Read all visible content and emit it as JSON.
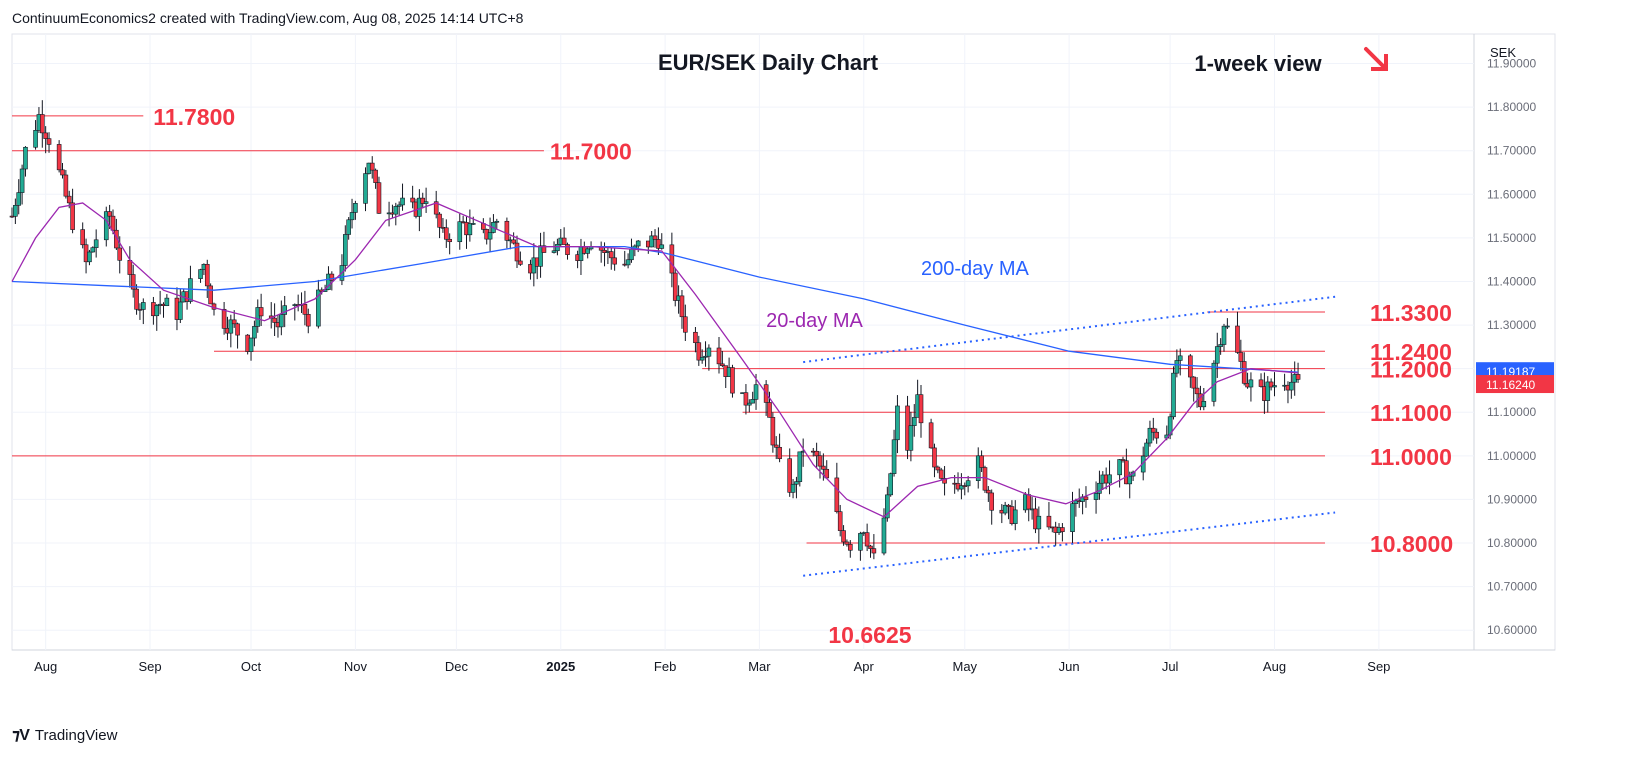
{
  "header": {
    "credit": "ContinuumEconomics2 created with TradingView.com, Aug 08, 2025 14:14 UTC+8"
  },
  "footer": {
    "brand": "TradingView"
  },
  "colors": {
    "bull": "#22ab94",
    "bear": "#f23645",
    "ma20": "#9c27b0",
    "ma200": "#2962ff",
    "level": "#f23645",
    "channel": "#2962ff",
    "price_tag": "#f23645",
    "ma200_tag": "#2962ff",
    "grid": "#f0f3fa",
    "text": "#131722",
    "axis_text": "#6a6d78"
  },
  "chart_data": {
    "type": "candlestick",
    "title": "EUR/SEK Daily Chart",
    "view_note": "1-week view",
    "view_direction": "down",
    "currency_label": "SEK",
    "ylim": [
      10.55,
      11.97
    ],
    "y_ticks": [
      "11.90000",
      "11.80000",
      "11.70000",
      "11.60000",
      "11.50000",
      "11.40000",
      "11.30000",
      "11.20000",
      "11.10000",
      "11.00000",
      "10.90000",
      "10.80000",
      "10.70000",
      "10.60000"
    ],
    "x_ticks": [
      "Aug",
      "Sep",
      "Oct",
      "Nov",
      "Dec",
      "2025",
      "Feb",
      "Mar",
      "Apr",
      "May",
      "Jun",
      "Jul",
      "Aug",
      "Sep"
    ],
    "x_tick_dates": [
      "2024-08-01",
      "2024-09-01",
      "2024-10-01",
      "2024-11-01",
      "2024-12-01",
      "2025-01-01",
      "2025-02-01",
      "2025-03-01",
      "2025-04-01",
      "2025-05-01",
      "2025-06-01",
      "2025-07-01",
      "2025-08-01",
      "2025-09-01"
    ],
    "last_price": "11.16240",
    "ma200_last": "11.19187",
    "levels": [
      {
        "label": "11.7800",
        "value": 11.78,
        "from": "2024-07-22",
        "to": "2024-08-30"
      },
      {
        "label": "11.7000",
        "value": 11.7,
        "from": "2024-07-22",
        "to": "2024-12-27"
      },
      {
        "label": "11.3300",
        "value": 11.33,
        "from": "2025-07-12",
        "to": "2025-08-16"
      },
      {
        "label": "11.2400",
        "value": 11.24,
        "from": "2024-09-20",
        "to": "2025-08-16"
      },
      {
        "label": "11.2000",
        "value": 11.2,
        "from": "2025-02-12",
        "to": "2025-08-16"
      },
      {
        "label": "11.1000",
        "value": 11.1,
        "from": "2025-02-24",
        "to": "2025-08-16"
      },
      {
        "label": "11.0000",
        "value": 11.0,
        "from": "2024-07-22",
        "to": "2025-08-16"
      },
      {
        "label": "10.8000",
        "value": 10.8,
        "from": "2025-03-15",
        "to": "2025-08-16"
      }
    ],
    "low_label": {
      "label": "10.6625",
      "value": 10.6625,
      "date": "2025-04-07"
    },
    "channel_upper": [
      [
        "2025-03-14",
        11.215
      ],
      [
        "2025-08-19",
        11.365
      ]
    ],
    "channel_lower": [
      [
        "2025-03-14",
        10.725
      ],
      [
        "2025-08-19",
        10.87
      ]
    ],
    "ma_labels": [
      {
        "label": "200-day MA",
        "date": "2025-04-18",
        "value": 11.415
      },
      {
        "label": "20-day MA",
        "date": "2025-03-03",
        "value": 11.295
      }
    ],
    "ma200": [
      [
        "2024-07-22",
        11.4
      ],
      [
        "2024-08-20",
        11.39
      ],
      [
        "2024-09-20",
        11.38
      ],
      [
        "2024-10-20",
        11.4
      ],
      [
        "2024-11-20",
        11.44
      ],
      [
        "2024-12-20",
        11.48
      ],
      [
        "2025-01-20",
        11.48
      ],
      [
        "2025-02-01",
        11.465
      ],
      [
        "2025-03-01",
        11.41
      ],
      [
        "2025-04-01",
        11.36
      ],
      [
        "2025-05-01",
        11.3
      ],
      [
        "2025-06-01",
        11.24
      ],
      [
        "2025-07-01",
        11.21
      ],
      [
        "2025-08-08",
        11.19187
      ]
    ],
    "ma20": [
      [
        "2024-07-22",
        11.4
      ],
      [
        "2024-07-29",
        11.5
      ],
      [
        "2024-08-05",
        11.57
      ],
      [
        "2024-08-12",
        11.58
      ],
      [
        "2024-08-19",
        11.54
      ],
      [
        "2024-08-26",
        11.45
      ],
      [
        "2024-09-05",
        11.38
      ],
      [
        "2024-09-20",
        11.34
      ],
      [
        "2024-10-05",
        11.31
      ],
      [
        "2024-10-20",
        11.36
      ],
      [
        "2024-11-01",
        11.45
      ],
      [
        "2024-11-10",
        11.54
      ],
      [
        "2024-11-25",
        11.58
      ],
      [
        "2024-12-10",
        11.53
      ],
      [
        "2024-12-25",
        11.48
      ],
      [
        "2025-01-10",
        11.48
      ],
      [
        "2025-01-31",
        11.47
      ],
      [
        "2025-02-10",
        11.37
      ],
      [
        "2025-02-24",
        11.22
      ],
      [
        "2025-03-07",
        11.1
      ],
      [
        "2025-03-17",
        10.98
      ],
      [
        "2025-03-27",
        10.9
      ],
      [
        "2025-04-07",
        10.86
      ],
      [
        "2025-04-17",
        10.93
      ],
      [
        "2025-04-27",
        10.95
      ],
      [
        "2025-05-07",
        10.95
      ],
      [
        "2025-05-20",
        10.91
      ],
      [
        "2025-05-31",
        10.89
      ],
      [
        "2025-06-10",
        10.92
      ],
      [
        "2025-06-20",
        10.96
      ],
      [
        "2025-06-30",
        11.04
      ],
      [
        "2025-07-08",
        11.12
      ],
      [
        "2025-07-15",
        11.17
      ],
      [
        "2025-07-25",
        11.2
      ],
      [
        "2025-08-08",
        11.19
      ]
    ],
    "series_path": [
      [
        "2024-07-22",
        11.55
      ],
      [
        "2024-07-26",
        11.7
      ],
      [
        "2024-07-30",
        11.78
      ],
      [
        "2024-08-02",
        11.73
      ],
      [
        "2024-08-06",
        11.62
      ],
      [
        "2024-08-09",
        11.54
      ],
      [
        "2024-08-13",
        11.44
      ],
      [
        "2024-08-16",
        11.5
      ],
      [
        "2024-08-20",
        11.55
      ],
      [
        "2024-08-23",
        11.46
      ],
      [
        "2024-08-27",
        11.37
      ],
      [
        "2024-08-30",
        11.34
      ],
      [
        "2024-09-04",
        11.35
      ],
      [
        "2024-09-09",
        11.33
      ],
      [
        "2024-09-13",
        11.39
      ],
      [
        "2024-09-17",
        11.44
      ],
      [
        "2024-09-20",
        11.33
      ],
      [
        "2024-09-25",
        11.3
      ],
      [
        "2024-09-30",
        11.26
      ],
      [
        "2024-10-04",
        11.34
      ],
      [
        "2024-10-09",
        11.3
      ],
      [
        "2024-10-14",
        11.35
      ],
      [
        "2024-10-18",
        11.32
      ],
      [
        "2024-10-23",
        11.38
      ],
      [
        "2024-10-28",
        11.45
      ],
      [
        "2024-11-01",
        11.6
      ],
      [
        "2024-11-05",
        11.68
      ],
      [
        "2024-11-08",
        11.57
      ],
      [
        "2024-11-13",
        11.58
      ],
      [
        "2024-11-18",
        11.56
      ],
      [
        "2024-11-22",
        11.6
      ],
      [
        "2024-11-27",
        11.5
      ],
      [
        "2024-12-03",
        11.53
      ],
      [
        "2024-12-09",
        11.5
      ],
      [
        "2024-12-13",
        11.54
      ],
      [
        "2024-12-18",
        11.48
      ],
      [
        "2024-12-23",
        11.44
      ],
      [
        "2024-12-30",
        11.48
      ],
      [
        "2025-01-06",
        11.47
      ],
      [
        "2025-01-10",
        11.5
      ],
      [
        "2025-01-15",
        11.46
      ],
      [
        "2025-01-20",
        11.44
      ],
      [
        "2025-01-24",
        11.48
      ],
      [
        "2025-01-30",
        11.5
      ],
      [
        "2025-02-04",
        11.37
      ],
      [
        "2025-02-07",
        11.3
      ],
      [
        "2025-02-11",
        11.24
      ],
      [
        "2025-02-14",
        11.26
      ],
      [
        "2025-02-19",
        11.2
      ],
      [
        "2025-02-24",
        11.12
      ],
      [
        "2025-02-28",
        11.16
      ],
      [
        "2025-03-04",
        11.08
      ],
      [
        "2025-03-07",
        10.97
      ],
      [
        "2025-03-11",
        10.92
      ],
      [
        "2025-03-14",
        11.02
      ],
      [
        "2025-03-18",
        10.99
      ],
      [
        "2025-03-21",
        10.94
      ],
      [
        "2025-03-25",
        10.83
      ],
      [
        "2025-03-28",
        10.8
      ],
      [
        "2025-04-01",
        10.84
      ],
      [
        "2025-04-04",
        10.76
      ],
      [
        "2025-04-08",
        10.89
      ],
      [
        "2025-04-11",
        11.1
      ],
      [
        "2025-04-14",
        11.02
      ],
      [
        "2025-04-17",
        11.13
      ],
      [
        "2025-04-22",
        10.96
      ],
      [
        "2025-04-25",
        10.92
      ],
      [
        "2025-04-30",
        10.95
      ],
      [
        "2025-05-05",
        10.98
      ],
      [
        "2025-05-09",
        10.9
      ],
      [
        "2025-05-14",
        10.86
      ],
      [
        "2025-05-19",
        10.89
      ],
      [
        "2025-05-23",
        10.84
      ],
      [
        "2025-05-28",
        10.82
      ],
      [
        "2025-06-02",
        10.88
      ],
      [
        "2025-06-06",
        10.91
      ],
      [
        "2025-06-11",
        10.95
      ],
      [
        "2025-06-16",
        10.97
      ],
      [
        "2025-06-20",
        10.95
      ],
      [
        "2025-06-25",
        11.05
      ],
      [
        "2025-06-30",
        11.06
      ],
      [
        "2025-07-03",
        11.22
      ],
      [
        "2025-07-07",
        11.16
      ],
      [
        "2025-07-10",
        11.12
      ],
      [
        "2025-07-14",
        11.22
      ],
      [
        "2025-07-17",
        11.31
      ],
      [
        "2025-07-21",
        11.23
      ],
      [
        "2025-07-24",
        11.17
      ],
      [
        "2025-07-28",
        11.14
      ],
      [
        "2025-07-31",
        11.16
      ],
      [
        "2025-08-04",
        11.18
      ],
      [
        "2025-08-06",
        11.17
      ],
      [
        "2025-08-08",
        11.16
      ]
    ]
  }
}
